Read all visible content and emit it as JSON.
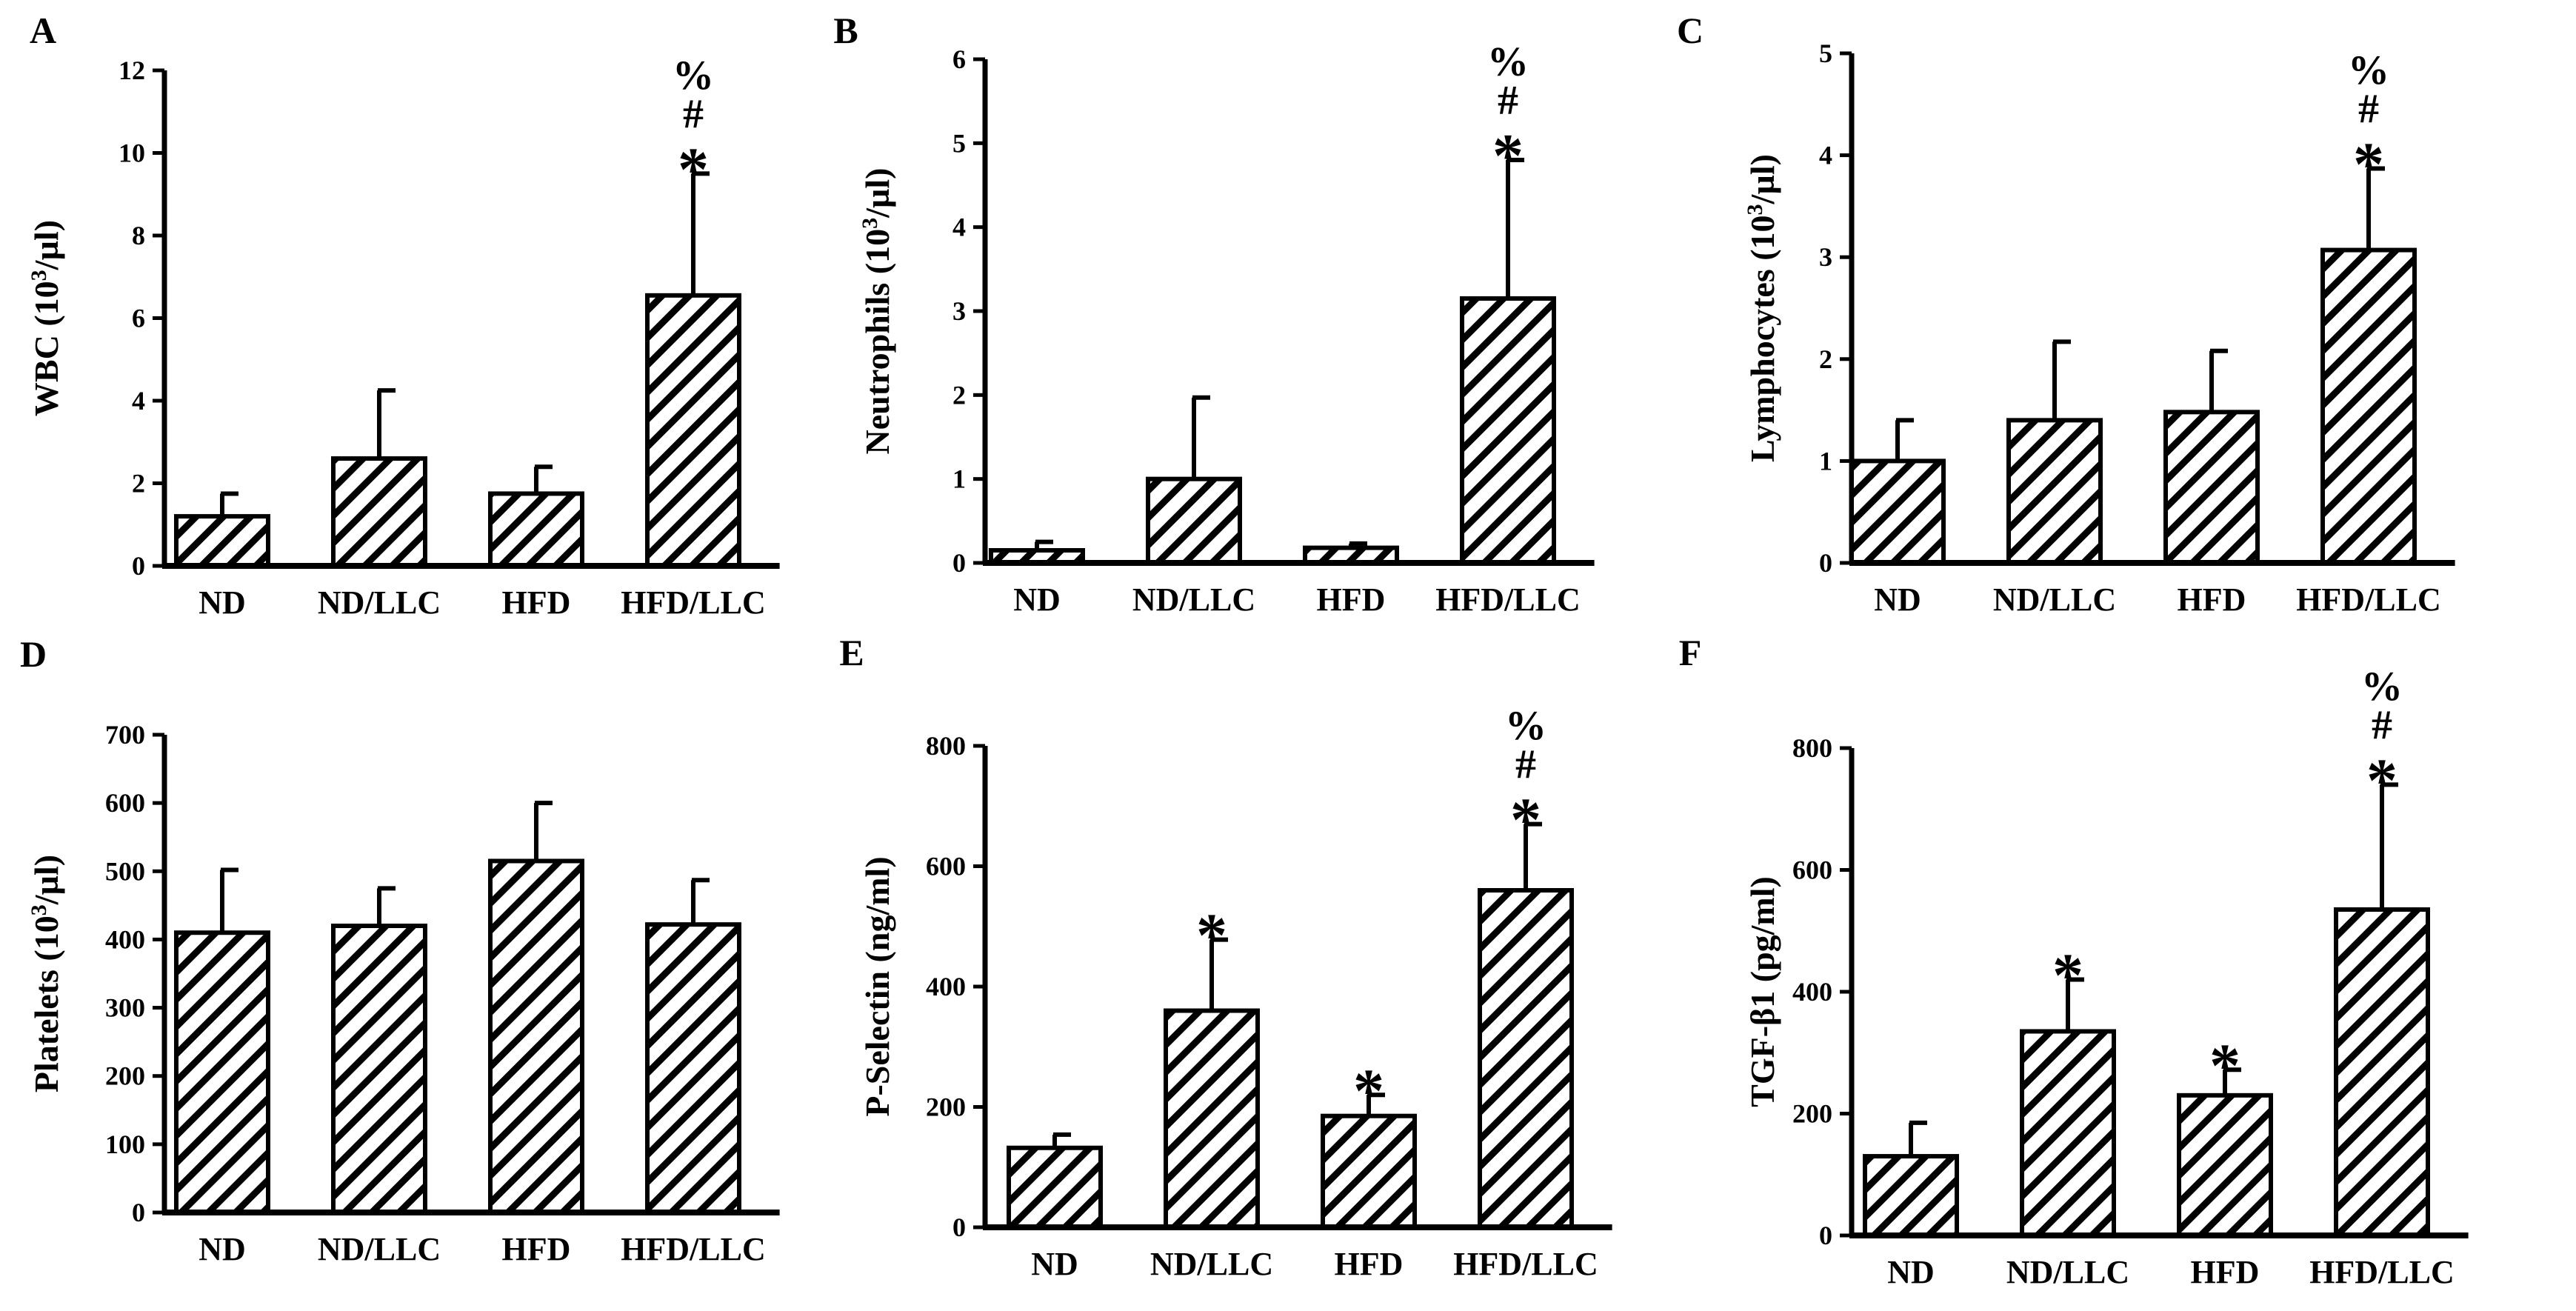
{
  "chart_data": [
    {
      "type": "bar",
      "panel": "A",
      "title": "",
      "ylabel_main": "WBC (10",
      "ylabel_sup": "3",
      "ylabel_tail": "/µl)",
      "xlabel": "",
      "ylim": [
        0,
        12
      ],
      "yticks": [
        0,
        2,
        4,
        6,
        8,
        10,
        12
      ],
      "categories": [
        "ND",
        "ND/LLC",
        "HFD",
        "HFD/LLC"
      ],
      "values": [
        1.2,
        2.6,
        1.75,
        6.55
      ],
      "errors": [
        0.55,
        1.65,
        0.65,
        2.95
      ],
      "significance": [
        [],
        [],
        [],
        [
          "*",
          "#",
          "%"
        ]
      ]
    },
    {
      "type": "bar",
      "panel": "B",
      "title": "",
      "ylabel_main": "Neutrophils (10",
      "ylabel_sup": "3",
      "ylabel_tail": "/µl)",
      "xlabel": "",
      "ylim": [
        0,
        6
      ],
      "yticks": [
        0,
        1,
        2,
        3,
        4,
        5,
        6
      ],
      "categories": [
        "ND",
        "ND/LLC",
        "HFD",
        "HFD/LLC"
      ],
      "values": [
        0.15,
        1.0,
        0.18,
        3.15
      ],
      "errors": [
        0.1,
        0.97,
        0.05,
        1.65
      ],
      "significance": [
        [],
        [],
        [],
        [
          "*",
          "#",
          "%"
        ]
      ]
    },
    {
      "type": "bar",
      "panel": "C",
      "title": "",
      "ylabel_main": "Lymphocytes (10",
      "ylabel_sup": "3",
      "ylabel_tail": "/µl)",
      "xlabel": "",
      "ylim": [
        0,
        5
      ],
      "yticks": [
        0,
        1,
        2,
        3,
        4,
        5
      ],
      "categories": [
        "ND",
        "ND/LLC",
        "HFD",
        "HFD/LLC"
      ],
      "values": [
        1.0,
        1.4,
        1.48,
        3.07
      ],
      "errors": [
        0.4,
        0.77,
        0.6,
        0.8
      ],
      "significance": [
        [],
        [],
        [],
        [
          "*",
          "#",
          "%"
        ]
      ]
    },
    {
      "type": "bar",
      "panel": "D",
      "title": "",
      "ylabel_main": "Platelets (10",
      "ylabel_sup": "3",
      "ylabel_tail": "/µl)",
      "xlabel": "",
      "ylim": [
        0,
        700
      ],
      "yticks": [
        0,
        100,
        200,
        300,
        400,
        500,
        600,
        700
      ],
      "categories": [
        "ND",
        "ND/LLC",
        "HFD",
        "HFD/LLC"
      ],
      "values": [
        410,
        420,
        515,
        422
      ],
      "errors": [
        92,
        55,
        85,
        65
      ],
      "significance": [
        [],
        [],
        [],
        []
      ]
    },
    {
      "type": "bar",
      "panel": "E",
      "title": "",
      "ylabel_main": "P-Selectin (ng/ml)",
      "ylabel_sup": "",
      "ylabel_tail": "",
      "xlabel": "",
      "ylim": [
        0,
        800
      ],
      "yticks": [
        0,
        200,
        400,
        600,
        800
      ],
      "categories": [
        "ND",
        "ND/LLC",
        "HFD",
        "HFD/LLC"
      ],
      "values": [
        132,
        360,
        185,
        560
      ],
      "errors": [
        22,
        118,
        35,
        110
      ],
      "significance": [
        [],
        [
          "*"
        ],
        [
          "*"
        ],
        [
          "*",
          "#",
          "%"
        ]
      ]
    },
    {
      "type": "bar",
      "panel": "F",
      "title": "",
      "ylabel_main": "TGF-β1 (pg/ml)",
      "ylabel_sup": "",
      "ylabel_tail": "",
      "xlabel": "",
      "ylim": [
        0,
        800
      ],
      "yticks": [
        0,
        200,
        400,
        600,
        800
      ],
      "categories": [
        "ND",
        "ND/LLC",
        "HFD",
        "HFD/LLC"
      ],
      "values": [
        130,
        335,
        230,
        535
      ],
      "errors": [
        55,
        85,
        42,
        205
      ],
      "significance": [
        [],
        [
          "*"
        ],
        [
          "*"
        ],
        [
          "*",
          "#",
          "%"
        ]
      ]
    }
  ]
}
